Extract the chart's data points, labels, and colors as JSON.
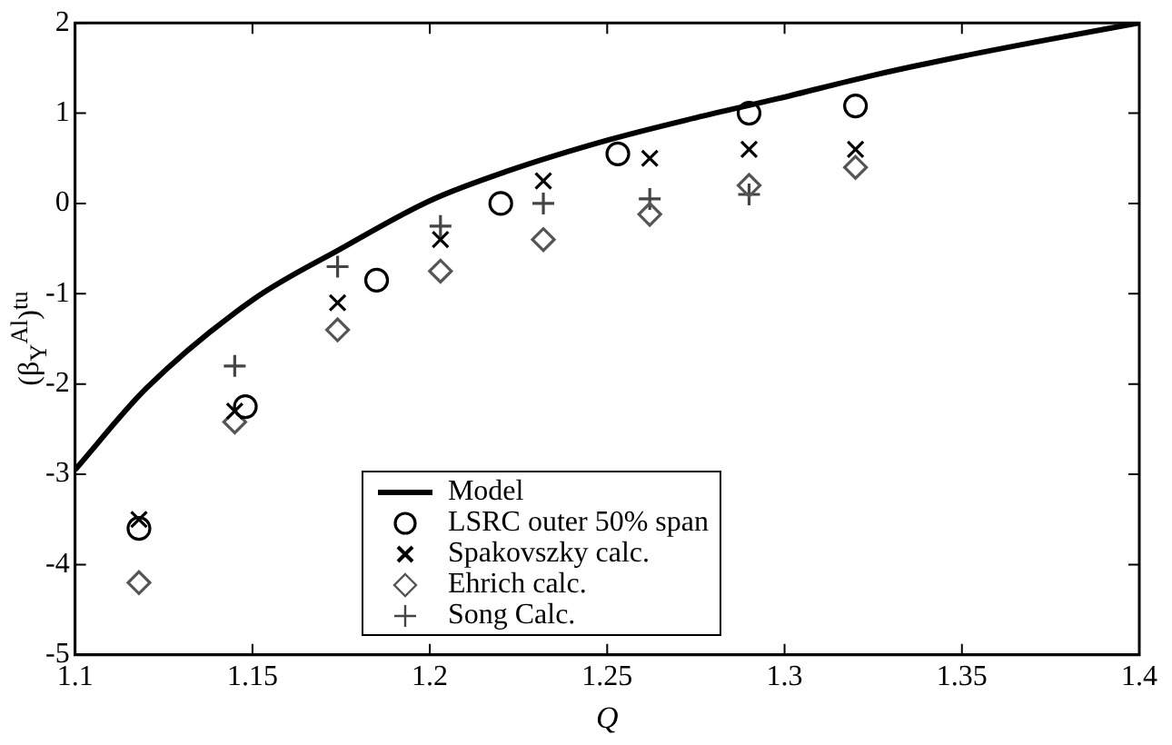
{
  "chart_data": {
    "type": "scatter",
    "xlabel": "Q",
    "ylabel": "(β$_{Y}$$^{Al}$)$^{tu}$",
    "xlim": [
      1.1,
      1.4
    ],
    "xticks": [
      1.1,
      1.15,
      1.2,
      1.25,
      1.3,
      1.35,
      1.4
    ],
    "ylim": [
      -5,
      2
    ],
    "yticks": [
      -5,
      -4,
      -3,
      -2,
      -1,
      0,
      1,
      2
    ],
    "grid": false,
    "legend": "bottom",
    "series": [
      {
        "name": "Model",
        "type": "line",
        "marker": "none",
        "color": "#000000",
        "x": [
          1.1,
          1.12,
          1.15,
          1.175,
          1.2,
          1.222,
          1.25,
          1.275,
          1.298,
          1.325,
          1.35,
          1.375,
          1.4
        ],
        "values": [
          -2.95,
          -2.05,
          -1.07,
          -0.5,
          0.03,
          0.36,
          0.7,
          0.95,
          1.16,
          1.42,
          1.63,
          1.82,
          2.0
        ]
      },
      {
        "name": "LSRC outer 50% span",
        "marker": "circle",
        "color": "#000000",
        "x": [
          1.118,
          1.148,
          1.185,
          1.22,
          1.253,
          1.29,
          1.32
        ],
        "values": [
          -3.6,
          -2.25,
          -0.85,
          0,
          0.55,
          1.0,
          1.08
        ]
      },
      {
        "name": "Spakovszky calc.",
        "marker": "cross",
        "color": "#000000",
        "x": [
          1.118,
          1.145,
          1.174,
          1.203,
          1.232,
          1.262,
          1.29,
          1.32
        ],
        "values": [
          -3.5,
          -2.3,
          -1.1,
          -0.4,
          0.25,
          0.5,
          0.6,
          0.6
        ]
      },
      {
        "name": "Ehrich calc.",
        "marker": "diamond",
        "color": "#555555",
        "x": [
          1.118,
          1.145,
          1.174,
          1.203,
          1.232,
          1.262,
          1.29,
          1.32
        ],
        "values": [
          -4.2,
          -2.42,
          -1.4,
          -0.75,
          -0.4,
          -0.12,
          0.2,
          0.4
        ]
      },
      {
        "name": "Song Calc.",
        "marker": "plus",
        "color": "#444444",
        "x": [
          1.145,
          1.174,
          1.203,
          1.232,
          1.262,
          1.29
        ],
        "values": [
          -1.8,
          -0.7,
          -0.25,
          0,
          0.05,
          0.1
        ]
      }
    ]
  }
}
